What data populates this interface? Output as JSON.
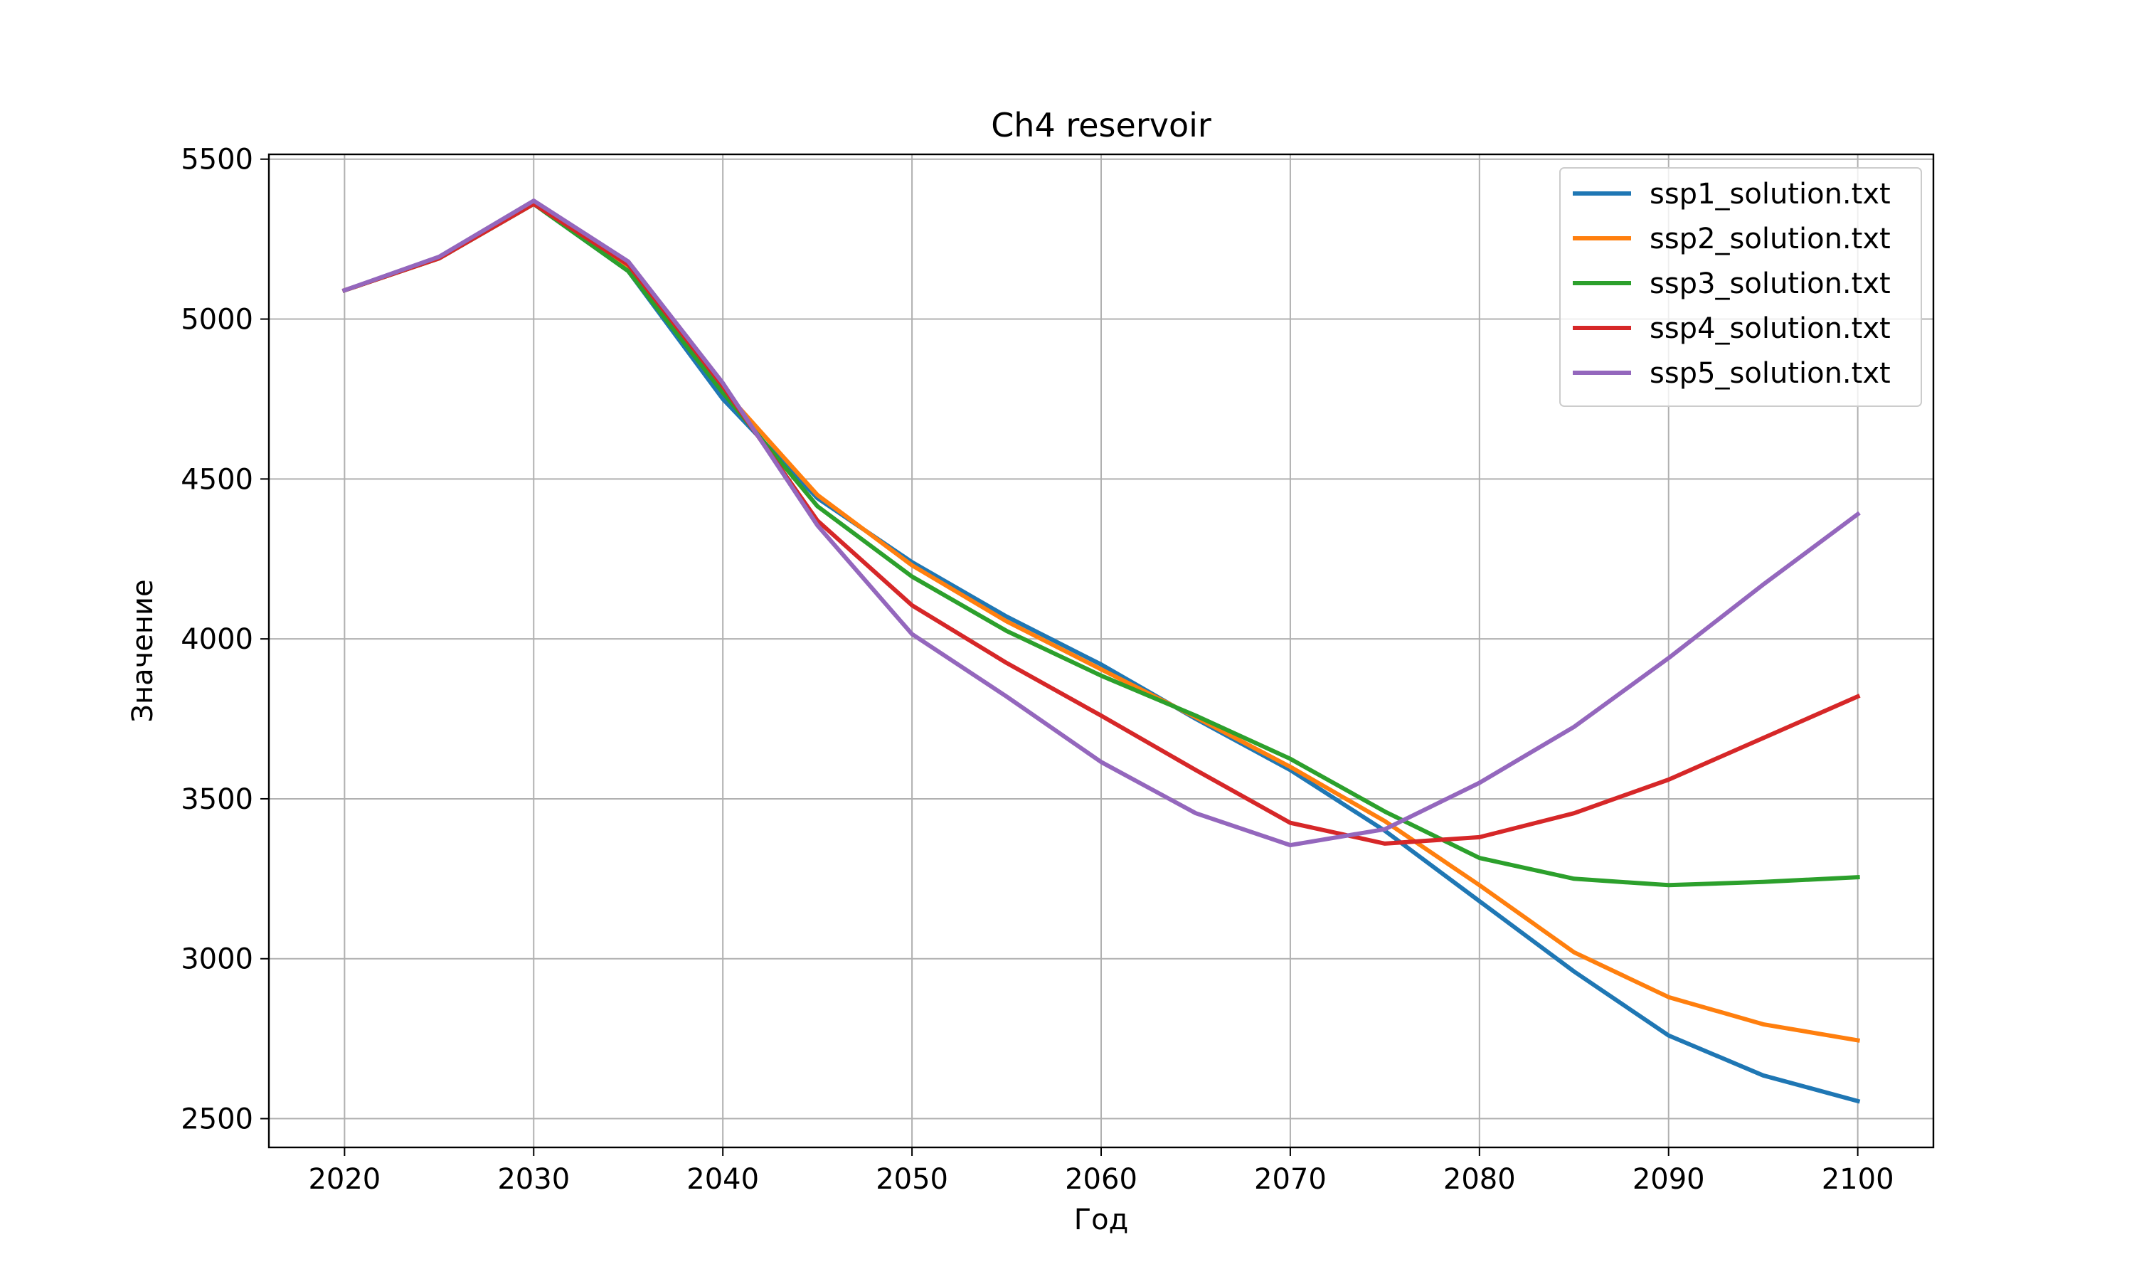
{
  "chart_data": {
    "type": "line",
    "title": "Ch4 reservoir",
    "xlabel": "Год",
    "ylabel": "Значение",
    "x": [
      2020,
      2025,
      2030,
      2035,
      2040,
      2045,
      2050,
      2055,
      2060,
      2065,
      2070,
      2075,
      2080,
      2085,
      2090,
      2095,
      2100
    ],
    "xlim": [
      2016,
      2104
    ],
    "ylim": [
      2410,
      5515
    ],
    "xticks": [
      2020,
      2030,
      2040,
      2050,
      2060,
      2070,
      2080,
      2090,
      2100
    ],
    "yticks": [
      2500,
      3000,
      3500,
      4000,
      4500,
      5000,
      5500
    ],
    "grid": true,
    "legend_position": "top-right",
    "series": [
      {
        "name": "ssp1_solution.txt",
        "color": "#1f77b4",
        "values": [
          5090,
          5190,
          5360,
          5150,
          4750,
          4440,
          4240,
          4070,
          3920,
          3750,
          3590,
          3400,
          3180,
          2960,
          2760,
          2635,
          2555
        ]
      },
      {
        "name": "ssp2_solution.txt",
        "color": "#ff7f0e",
        "values": [
          5090,
          5190,
          5360,
          5155,
          4780,
          4450,
          4230,
          4055,
          3905,
          3755,
          3600,
          3430,
          3230,
          3020,
          2880,
          2795,
          2745
        ]
      },
      {
        "name": "ssp3_solution.txt",
        "color": "#2ca02c",
        "values": [
          5090,
          5190,
          5360,
          5150,
          4770,
          4415,
          4195,
          4025,
          3885,
          3760,
          3625,
          3460,
          3315,
          3250,
          3230,
          3240,
          3255
        ]
      },
      {
        "name": "ssp4_solution.txt",
        "color": "#d62728",
        "values": [
          5090,
          5190,
          5360,
          5170,
          4790,
          4370,
          4105,
          3925,
          3760,
          3590,
          3425,
          3360,
          3380,
          3455,
          3560,
          3690,
          3820
        ]
      },
      {
        "name": "ssp5_solution.txt",
        "color": "#9467bd",
        "values": [
          5090,
          5195,
          5370,
          5180,
          4800,
          4355,
          4015,
          3820,
          3615,
          3455,
          3355,
          3405,
          3550,
          3725,
          3940,
          4170,
          4390
        ]
      }
    ]
  }
}
